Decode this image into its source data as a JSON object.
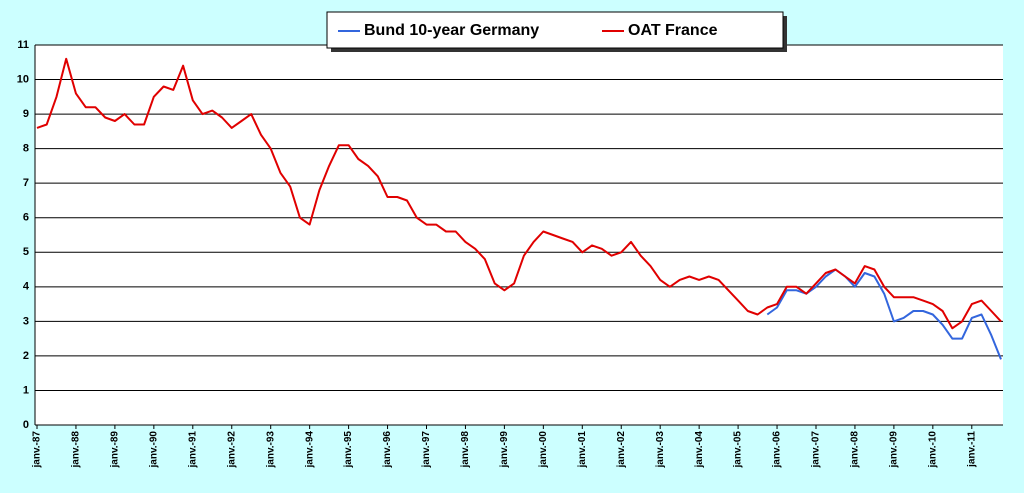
{
  "chart_data": {
    "type": "line",
    "categories": [
      "janv.-87",
      null,
      null,
      null,
      "janv.-88",
      null,
      null,
      null,
      "janv.-89",
      null,
      null,
      null,
      "janv.-90",
      null,
      null,
      null,
      "janv.-91",
      null,
      null,
      null,
      "janv.-92",
      null,
      null,
      null,
      "janv.-93",
      null,
      null,
      null,
      "janv.-94",
      null,
      null,
      null,
      "janv.-95",
      null,
      null,
      null,
      "janv.-96",
      null,
      null,
      null,
      "janv.-97",
      null,
      null,
      null,
      "janv.-98",
      null,
      null,
      null,
      "janv.-99",
      null,
      null,
      null,
      "janv.-00",
      null,
      null,
      null,
      "janv.-01",
      null,
      null,
      null,
      "janv.-02",
      null,
      null,
      null,
      "janv.-03",
      null,
      null,
      null,
      "janv.-04",
      null,
      null,
      null,
      "janv.-05",
      null,
      null,
      null,
      "janv.-06",
      null,
      null,
      null,
      "janv.-07",
      null,
      null,
      null,
      "janv.-08",
      null,
      null,
      null,
      "janv.-09",
      null,
      null,
      null,
      "janv.-10",
      null,
      null,
      null,
      "janv.-11",
      null,
      null,
      null
    ],
    "series": [
      {
        "name": "Bund 10-year Germany",
        "color": "#3366dd",
        "values": [
          null,
          null,
          null,
          null,
          null,
          null,
          null,
          null,
          null,
          null,
          null,
          null,
          null,
          null,
          null,
          null,
          null,
          null,
          null,
          null,
          null,
          null,
          null,
          null,
          null,
          null,
          null,
          null,
          null,
          null,
          null,
          null,
          null,
          null,
          null,
          null,
          null,
          null,
          null,
          null,
          null,
          null,
          null,
          null,
          null,
          null,
          null,
          null,
          null,
          null,
          null,
          null,
          null,
          null,
          null,
          null,
          null,
          null,
          null,
          null,
          null,
          null,
          null,
          null,
          null,
          null,
          null,
          null,
          null,
          null,
          null,
          null,
          null,
          null,
          null,
          3.2,
          3.4,
          3.9,
          3.9,
          3.8,
          4.0,
          4.3,
          4.5,
          4.3,
          4.0,
          4.4,
          4.3,
          3.8,
          3.0,
          3.1,
          3.3,
          3.3,
          3.2,
          2.9,
          2.5,
          2.5,
          3.1,
          3.2,
          2.6,
          1.9
        ]
      },
      {
        "name": "OAT France",
        "color": "#e00000",
        "values": [
          8.6,
          8.7,
          9.5,
          10.6,
          9.6,
          9.2,
          9.2,
          8.9,
          8.8,
          9.0,
          8.7,
          8.7,
          9.5,
          9.8,
          9.7,
          10.4,
          9.4,
          9.0,
          9.1,
          8.9,
          8.6,
          8.8,
          9.0,
          8.4,
          8.0,
          7.3,
          6.9,
          6.0,
          5.8,
          6.8,
          7.5,
          8.1,
          8.1,
          7.7,
          7.5,
          7.2,
          6.6,
          6.6,
          6.5,
          6.0,
          5.8,
          5.8,
          5.6,
          5.6,
          5.3,
          5.1,
          4.8,
          4.1,
          3.9,
          4.1,
          4.9,
          5.3,
          5.6,
          5.5,
          5.4,
          5.3,
          5.0,
          5.2,
          5.1,
          4.9,
          5.0,
          5.3,
          4.9,
          4.6,
          4.2,
          4.0,
          4.2,
          4.3,
          4.2,
          4.3,
          4.2,
          3.9,
          3.6,
          3.3,
          3.2,
          3.4,
          3.5,
          4.0,
          4.0,
          3.8,
          4.1,
          4.4,
          4.5,
          4.3,
          4.1,
          4.6,
          4.5,
          4.0,
          3.7,
          3.7,
          3.7,
          3.6,
          3.5,
          3.3,
          2.8,
          3.0,
          3.5,
          3.6,
          3.3,
          3.0
        ]
      }
    ],
    "ylim": [
      0,
      11
    ],
    "yticks": [
      0,
      1,
      2,
      3,
      4,
      5,
      6,
      7,
      8,
      9,
      10,
      11
    ],
    "grid": true,
    "legend": "top"
  }
}
